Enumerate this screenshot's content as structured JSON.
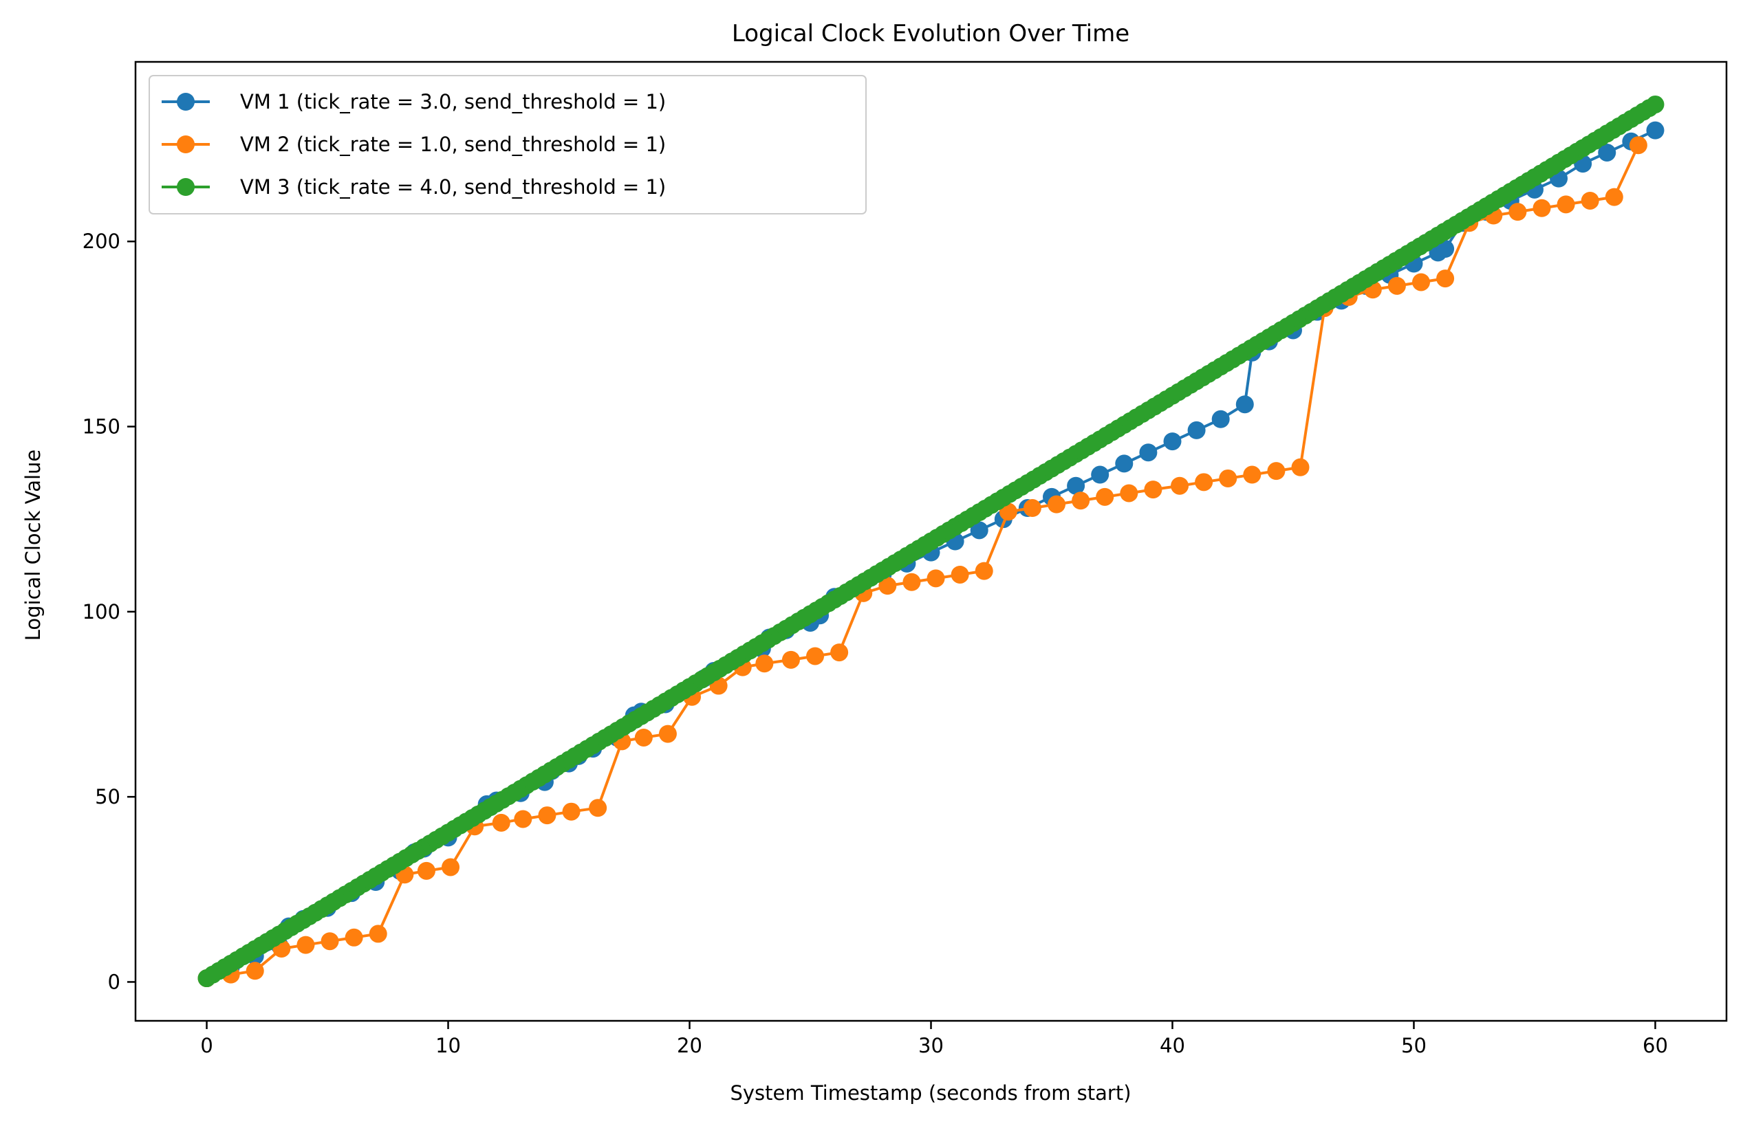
{
  "chart_data": {
    "type": "line",
    "title": "Logical Clock Evolution Over Time",
    "xlabel": "System Timestamp (seconds from start)",
    "ylabel": "Logical Clock Value",
    "xlim": [
      -2.95,
      62.95
    ],
    "ylim": [
      -10.5,
      248.5
    ],
    "xticks": [
      0,
      10,
      20,
      30,
      40,
      50,
      60
    ],
    "yticks": [
      0,
      50,
      100,
      150,
      200
    ],
    "grid": false,
    "legend_position": "upper left",
    "series": [
      {
        "name": "VM 1 (tick_rate = 3.0, send_threshold = 1)",
        "color": "#1f77b4",
        "points": [
          [
            0.0,
            1
          ],
          [
            1.0,
            4
          ],
          [
            2.0,
            7
          ],
          [
            3.0,
            10
          ],
          [
            3.4,
            15
          ],
          [
            4.0,
            17
          ],
          [
            5.0,
            20
          ],
          [
            6.0,
            24
          ],
          [
            7.0,
            27
          ],
          [
            8.0,
            30
          ],
          [
            8.6,
            35
          ],
          [
            9.0,
            36
          ],
          [
            10.0,
            39
          ],
          [
            11.0,
            43
          ],
          [
            11.6,
            48
          ],
          [
            12.0,
            49
          ],
          [
            13.0,
            51
          ],
          [
            14.0,
            54
          ],
          [
            14.3,
            57
          ],
          [
            15.0,
            59
          ],
          [
            15.4,
            61
          ],
          [
            16.0,
            63
          ],
          [
            17.0,
            66
          ],
          [
            17.7,
            72
          ],
          [
            18.0,
            73
          ],
          [
            19.0,
            75
          ],
          [
            20.0,
            78
          ],
          [
            20.6,
            82
          ],
          [
            21.0,
            84
          ],
          [
            22.0,
            87
          ],
          [
            23.0,
            90
          ],
          [
            23.3,
            93
          ],
          [
            24.0,
            95
          ],
          [
            25.0,
            97
          ],
          [
            25.4,
            99
          ],
          [
            26.0,
            104
          ],
          [
            27.0,
            107
          ],
          [
            28.0,
            110
          ],
          [
            29.0,
            113
          ],
          [
            30.0,
            116
          ],
          [
            31.0,
            119
          ],
          [
            32.0,
            122
          ],
          [
            33.0,
            125
          ],
          [
            34.0,
            128
          ],
          [
            35.0,
            131
          ],
          [
            36.0,
            134
          ],
          [
            37.0,
            137
          ],
          [
            38.0,
            140
          ],
          [
            39.0,
            143
          ],
          [
            40.0,
            146
          ],
          [
            41.0,
            149
          ],
          [
            42.0,
            152
          ],
          [
            43.0,
            156
          ],
          [
            43.3,
            170
          ],
          [
            44.0,
            173
          ],
          [
            45.0,
            176
          ],
          [
            46.0,
            181
          ],
          [
            47.0,
            184
          ],
          [
            48.0,
            188
          ],
          [
            49.0,
            191
          ],
          [
            50.0,
            194
          ],
          [
            51.0,
            197
          ],
          [
            51.3,
            198
          ],
          [
            52.0,
            205
          ],
          [
            53.0,
            208
          ],
          [
            54.0,
            211
          ],
          [
            55.0,
            214
          ],
          [
            56.0,
            217
          ],
          [
            57.0,
            221
          ],
          [
            58.0,
            224
          ],
          [
            59.0,
            227
          ],
          [
            60.0,
            230
          ]
        ]
      },
      {
        "name": "VM 2 (tick_rate = 1.0, send_threshold = 1)",
        "color": "#ff7f0e",
        "points": [
          [
            0.0,
            1
          ],
          [
            1.0,
            2
          ],
          [
            2.0,
            3
          ],
          [
            3.1,
            9
          ],
          [
            4.1,
            10
          ],
          [
            5.1,
            11
          ],
          [
            6.1,
            12
          ],
          [
            7.1,
            13
          ],
          [
            8.2,
            29
          ],
          [
            9.1,
            30
          ],
          [
            10.1,
            31
          ],
          [
            11.1,
            42
          ],
          [
            12.2,
            43
          ],
          [
            13.1,
            44
          ],
          [
            14.1,
            45
          ],
          [
            15.1,
            46
          ],
          [
            16.2,
            47
          ],
          [
            17.2,
            65
          ],
          [
            18.1,
            66
          ],
          [
            19.1,
            67
          ],
          [
            20.1,
            77
          ],
          [
            21.2,
            80
          ],
          [
            22.2,
            85
          ],
          [
            23.1,
            86
          ],
          [
            24.2,
            87
          ],
          [
            25.2,
            88
          ],
          [
            26.2,
            89
          ],
          [
            27.2,
            105
          ],
          [
            28.2,
            107
          ],
          [
            29.2,
            108
          ],
          [
            30.2,
            109
          ],
          [
            31.2,
            110
          ],
          [
            32.2,
            111
          ],
          [
            33.2,
            127
          ],
          [
            34.2,
            128
          ],
          [
            35.2,
            129
          ],
          [
            36.2,
            130
          ],
          [
            37.2,
            131
          ],
          [
            38.2,
            132
          ],
          [
            39.2,
            133
          ],
          [
            40.3,
            134
          ],
          [
            41.3,
            135
          ],
          [
            42.3,
            136
          ],
          [
            43.3,
            137
          ],
          [
            44.3,
            138
          ],
          [
            45.3,
            139
          ],
          [
            46.3,
            182
          ],
          [
            47.3,
            185
          ],
          [
            48.3,
            187
          ],
          [
            49.3,
            188
          ],
          [
            50.3,
            189
          ],
          [
            51.3,
            190
          ],
          [
            52.3,
            205
          ],
          [
            53.3,
            207
          ],
          [
            54.3,
            208
          ],
          [
            55.3,
            209
          ],
          [
            56.3,
            210
          ],
          [
            57.3,
            211
          ],
          [
            58.3,
            212
          ],
          [
            59.3,
            226
          ]
        ]
      },
      {
        "name": "VM 3 (tick_rate = 4.0, send_threshold = 1)",
        "color": "#2ca02c",
        "start": [
          0.0,
          1
        ],
        "end": [
          60.0,
          237
        ],
        "count": 241
      }
    ]
  }
}
